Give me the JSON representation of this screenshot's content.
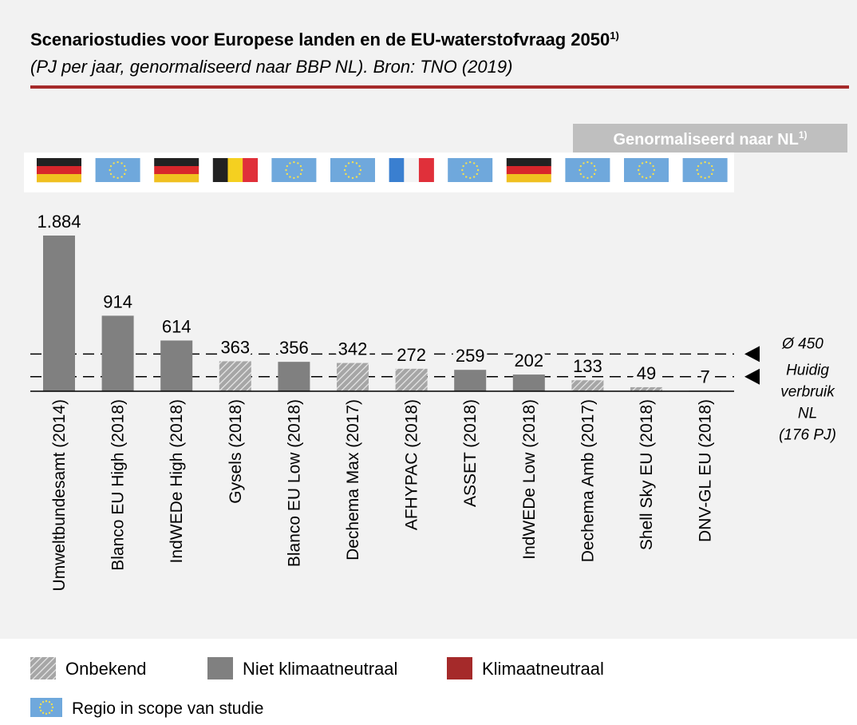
{
  "chart_data": {
    "type": "bar",
    "title": "Scenariostudies voor Europese landen en de EU-waterstofvraag 2050",
    "title_note": "1)",
    "subtitle": "(PJ per jaar, genormaliseerd naar BBP NL). Bron: TNO (2019)",
    "badge": "Genormaliseerd naar NL",
    "badge_note": "1)",
    "categories": [
      "Umweltbundesamt (2014)",
      "Blanco EU High (2018)",
      "IndWEDe High (2018)",
      "Gysels (2018)",
      "Blanco EU Low (2018)",
      "Dechema Max (2017)",
      "AFHYPAC (2018)",
      "ASSET (2018)",
      "IndWEDe Low (2018)",
      "Dechema Amb (2017)",
      "Shell Sky EU (2018)",
      "DNV-GL EU (2018)"
    ],
    "series": [
      {
        "name": "Onbekend",
        "color": "#a6a6a6",
        "pattern": "hatch",
        "values": [
          null,
          null,
          null,
          363,
          null,
          342,
          272,
          null,
          null,
          133,
          49,
          null
        ]
      },
      {
        "name": "Niet klimaatneutraal",
        "color": "#808080",
        "values": [
          1884,
          914,
          614,
          null,
          356,
          null,
          null,
          259,
          202,
          null,
          null,
          7
        ],
        "value_labels": [
          "1.884",
          null,
          null,
          null,
          null,
          null,
          null,
          null,
          null,
          null,
          null,
          null
        ]
      },
      {
        "name": "Klimaatneutraal",
        "color": "#a52a2a",
        "values": [
          null,
          null,
          null,
          null,
          null,
          null,
          null,
          null,
          null,
          null,
          null,
          null
        ]
      }
    ],
    "ylim": [
      0,
      2000
    ],
    "reference_lines": [
      {
        "value": 450,
        "label": [
          "Ø 450"
        ]
      },
      {
        "value": 176,
        "label": [
          "Huidig",
          "verbruik",
          "NL",
          "(176 PJ)"
        ]
      }
    ],
    "flag_legend": "Regio in scope van studie"
  }
}
